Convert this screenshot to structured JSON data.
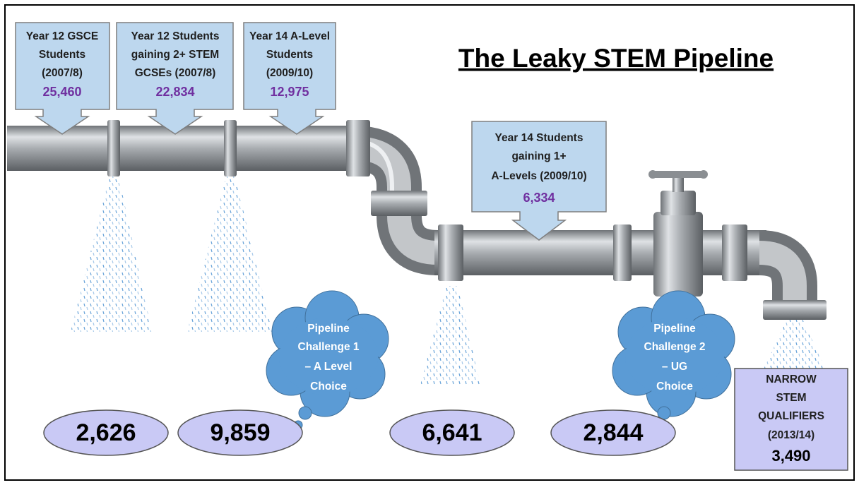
{
  "title": "The Leaky STEM Pipeline",
  "callouts": [
    {
      "lines": [
        "Year 12 GSCE",
        "Students",
        "(2007/8)"
      ],
      "value": "25,460"
    },
    {
      "lines": [
        "Year 12 Students",
        "gaining 2+ STEM",
        "GCSEs (2007/8)"
      ],
      "value": "22,834"
    },
    {
      "lines": [
        "Year 14 A-Level",
        "Students",
        "(2009/10)"
      ],
      "value": "12,975"
    },
    {
      "lines": [
        "Year 14 Students",
        "gaining 1+",
        "A-Levels (2009/10)"
      ],
      "value": "6,334"
    }
  ],
  "leaks": [
    "2,626",
    "9,859",
    "6,641",
    "2,844"
  ],
  "challenges": [
    {
      "lines": [
        "Pipeline",
        "Challenge 1",
        "– A Level",
        "Choice"
      ]
    },
    {
      "lines": [
        "Pipeline",
        "Challenge 2",
        "– UG",
        "Choice"
      ]
    }
  ],
  "outcome": {
    "lines": [
      "NARROW",
      "STEM",
      "QUALIFIERS",
      "(2013/14)"
    ],
    "value": "3,490"
  }
}
